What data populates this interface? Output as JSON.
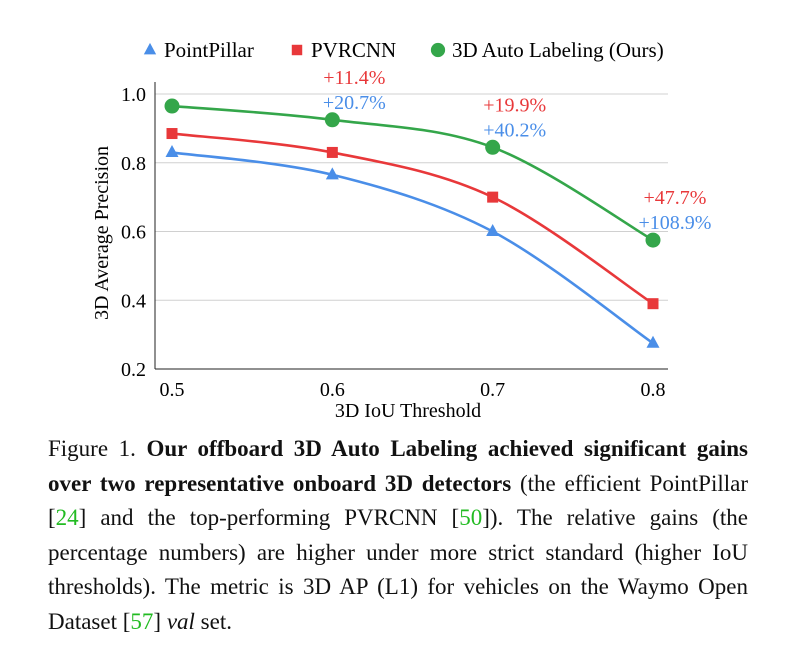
{
  "chart_data": {
    "type": "line",
    "x": [
      0.5,
      0.6,
      0.7,
      0.8
    ],
    "x_tick_labels": [
      "0.5",
      "0.6",
      "0.7",
      "0.8"
    ],
    "y_tick_labels": [
      "0.2",
      "0.4",
      "0.6",
      "0.8",
      "1.0"
    ],
    "y_ticks": [
      0.2,
      0.4,
      0.6,
      0.8,
      1.0
    ],
    "xlim": [
      0.5,
      0.8
    ],
    "ylim": [
      0.2,
      1.0
    ],
    "xlabel": "3D IoU Threshold",
    "ylabel": "3D Average Precision",
    "grid": "horizontal",
    "legend_position": "top",
    "series": [
      {
        "name": "PointPillar",
        "marker": "triangle",
        "color": "#4a8ee8",
        "values": [
          0.83,
          0.765,
          0.6,
          0.275
        ]
      },
      {
        "name": "PVRCNN",
        "marker": "square",
        "color": "#e8383a",
        "values": [
          0.885,
          0.83,
          0.7,
          0.39
        ]
      },
      {
        "name": "3D Auto Labeling (Ours)",
        "marker": "circle",
        "color": "#34a64a",
        "values": [
          0.965,
          0.925,
          0.845,
          0.575
        ]
      }
    ],
    "annotations": [
      {
        "x": 0.6,
        "vs_pvrcnn": "+11.4%",
        "vs_pointpillar": "+20.7%"
      },
      {
        "x": 0.7,
        "vs_pvrcnn": "+19.9%",
        "vs_pointpillar": "+40.2%"
      },
      {
        "x": 0.8,
        "vs_pvrcnn": "+47.7%",
        "vs_pointpillar": "+108.9%"
      }
    ]
  },
  "caption": {
    "label": "Figure 1.",
    "bold": "Our offboard 3D Auto Labeling achieved significant gains over two representative onboard 3D detectors",
    "t1": " (the efficient PointPillar [",
    "ref1": "24",
    "t2": "] and the top-performing PVRCNN [",
    "ref2": "50",
    "t3": "]). The relative gains (the percentage numbers) are higher under more strict standard (higher IoU thresholds). The metric is 3D AP (L1) for vehicles on the Waymo Open Dataset [",
    "ref3": "57",
    "t4": "] ",
    "italic": "val",
    "t5": " set."
  }
}
